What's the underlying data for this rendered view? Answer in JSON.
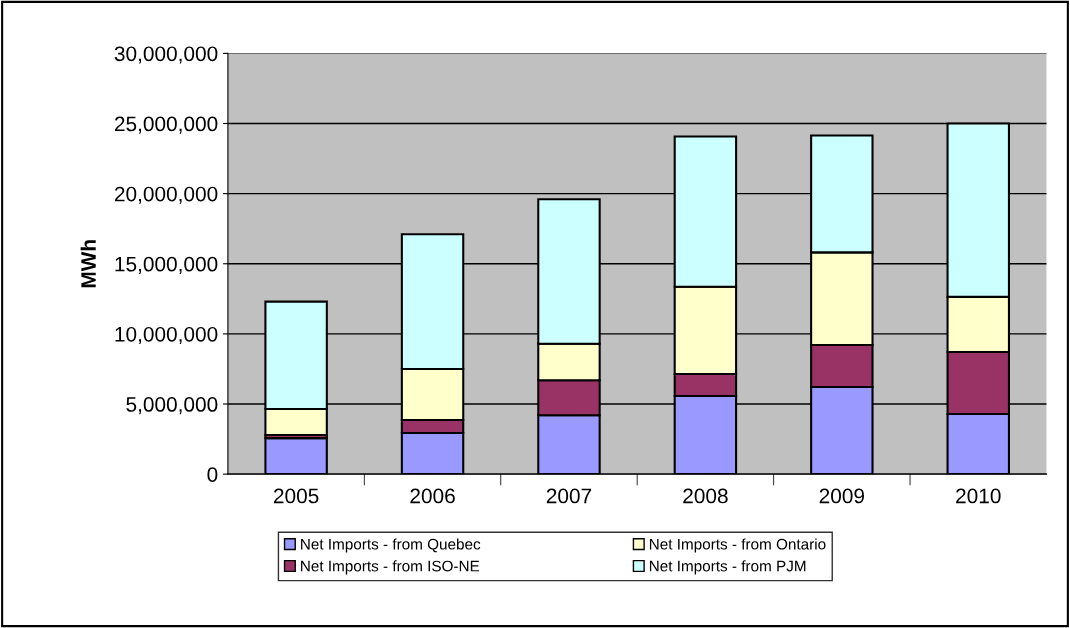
{
  "chart_data": {
    "type": "bar",
    "stacked": true,
    "ylabel": "MWh",
    "categories": [
      "2005",
      "2006",
      "2007",
      "2008",
      "2009",
      "2010"
    ],
    "series": [
      {
        "name": "Net Imports - from Quebec",
        "color": "#9999ff",
        "values": [
          2570000,
          2930000,
          4200000,
          5570000,
          6210000,
          4290000
        ]
      },
      {
        "name": "Net Imports - from ISO-NE",
        "color": "#993366",
        "values": [
          220000,
          930000,
          2500000,
          1570000,
          3000000,
          4420000
        ]
      },
      {
        "name": "Net Imports - from Ontario",
        "color": "#ffffcc",
        "values": [
          1850000,
          3640000,
          2600000,
          6220000,
          6600000,
          3930000
        ]
      },
      {
        "name": "Net Imports - from PJM",
        "color": "#ccffff",
        "values": [
          7660000,
          9600000,
          10300000,
          10710000,
          8340000,
          12360000
        ]
      }
    ],
    "ylim": [
      0,
      30000000
    ],
    "yticks": [
      0,
      {
        "value": 5000000,
        "label": "5,000,000"
      },
      {
        "value": 10000000,
        "label": "10,000,000"
      },
      {
        "value": 15000000,
        "label": "15,000,000"
      },
      {
        "value": 20000000,
        "label": "20,000,000"
      },
      {
        "value": 25000000,
        "label": "25,000,000"
      },
      {
        "value": 30000000,
        "label": "30,000,000"
      }
    ],
    "grid": "y",
    "legend": "bottom"
  }
}
